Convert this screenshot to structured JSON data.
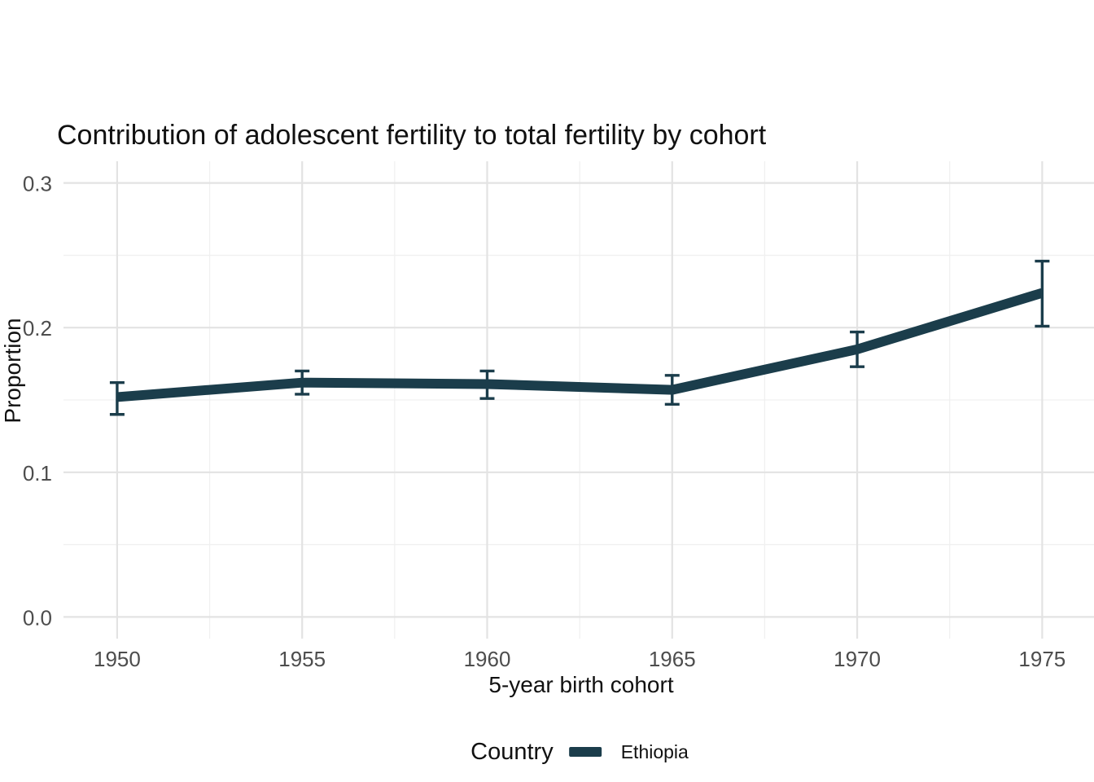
{
  "page": {
    "background": "#ffffff"
  },
  "legend": {
    "title": "Country",
    "position": "bottom"
  },
  "chart_data": {
    "type": "line",
    "title": "Contribution of adolescent fertility to total fertility by cohort",
    "xlabel": "5-year birth cohort",
    "ylabel": "Proportion",
    "x": [
      1950,
      1955,
      1960,
      1965,
      1970,
      1975
    ],
    "x_tick_labels": [
      "1950",
      "1955",
      "1960",
      "1965",
      "1970",
      "1975"
    ],
    "y_ticks": [
      0.0,
      0.1,
      0.2,
      0.3
    ],
    "y_tick_labels": [
      "0.0",
      "0.1",
      "0.2",
      "0.3"
    ],
    "xlim": [
      1948.55,
      1976.4
    ],
    "ylim": [
      -0.015,
      0.315
    ],
    "grid": {
      "show": true,
      "major_color": "#e3e3e3",
      "minor_color": "#f0f0f0",
      "y_minor": [
        0.05,
        0.15,
        0.25
      ],
      "x_minor": [
        1952.5,
        1957.5,
        1962.5,
        1967.5,
        1972.5
      ]
    },
    "error_bars": true,
    "legend_position": "bottom",
    "series": [
      {
        "name": "Ethiopia",
        "color": "#1b3d4b",
        "values": [
          0.152,
          0.162,
          0.161,
          0.157,
          0.185,
          0.224
        ],
        "ci_lower": [
          0.14,
          0.154,
          0.151,
          0.147,
          0.173,
          0.201
        ],
        "ci_upper": [
          0.162,
          0.17,
          0.17,
          0.167,
          0.197,
          0.246
        ]
      }
    ],
    "style": {
      "line_width": 12,
      "errorbar_width": 3.4,
      "errorbar_cap_halfwidth": 9,
      "tick_label_color": "#4d4d4d",
      "text_color": "#111111"
    }
  }
}
